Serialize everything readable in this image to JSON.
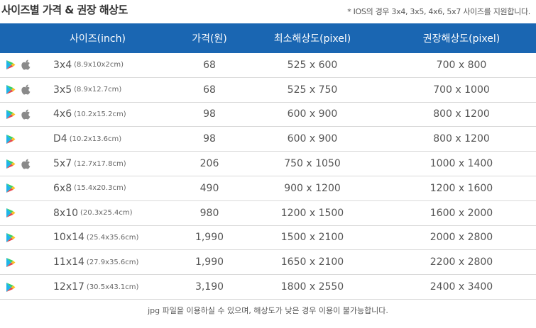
{
  "title": "사이즈별 가격 & 권장 해상도",
  "note": "* IOS의 경우 3x4, 3x5, 4x6, 5x7 사이즈를 지원합니다.",
  "headers": [
    "사이즈(inch)",
    "가격(원)",
    "최소해상도(pixel)",
    "권장해상도(pixel)"
  ],
  "rows": [
    {
      "size": "3x4",
      "cm": "(8.9x10x2cm)",
      "price": "68",
      "min": "525 x 600",
      "rec": "700 x 800",
      "ios": true
    },
    {
      "size": "3x5",
      "cm": "(8.9x12.7cm)",
      "price": "68",
      "min": "525 x 750",
      "rec": "700 x 1000",
      "ios": true
    },
    {
      "size": "4x6",
      "cm": "(10.2x15.2cm)",
      "price": "98",
      "min": "600 x 900",
      "rec": "800 x 1200",
      "ios": true
    },
    {
      "size": "D4",
      "cm": "(10.2x13.6cm)",
      "price": "98",
      "min": "600 x 900",
      "rec": "800 x 1200",
      "ios": false
    },
    {
      "size": "5x7",
      "cm": "(12.7x17.8cm)",
      "price": "206",
      "min": "750 x 1050",
      "rec": "1000 x 1400",
      "ios": true
    },
    {
      "size": "6x8",
      "cm": "(15.4x20.3cm)",
      "price": "490",
      "min": "900 x 1200",
      "rec": "1200 x 1600",
      "ios": false
    },
    {
      "size": "8x10",
      "cm": "(20.3x25.4cm)",
      "price": "980",
      "min": "1200 x 1500",
      "rec": "1600 x 2000",
      "ios": false
    },
    {
      "size": "10x14",
      "cm": "(25.4x35.6cm)",
      "price": "1,990",
      "min": "1500 x 2100",
      "rec": "2000 x 2800",
      "ios": false
    },
    {
      "size": "11x14",
      "cm": "(27.9x35.6cm)",
      "price": "1,990",
      "min": "1650 x 2100",
      "rec": "2200 x 2800",
      "ios": false
    },
    {
      "size": "12x17",
      "cm": "(30.5x43.1cm)",
      "price": "3,190",
      "min": "1800 x 2550",
      "rec": "2400 x 3400",
      "ios": false
    }
  ],
  "footer": "jpg 파일을 이용하실 수 있으며, 해상도가 낮은 경우 이용이 불가능합니다.",
  "icons": {
    "android": "google-play-icon",
    "ios": "apple-icon"
  },
  "colors": {
    "header_bg": "#1a66b2",
    "header_text": "#ffffff"
  }
}
